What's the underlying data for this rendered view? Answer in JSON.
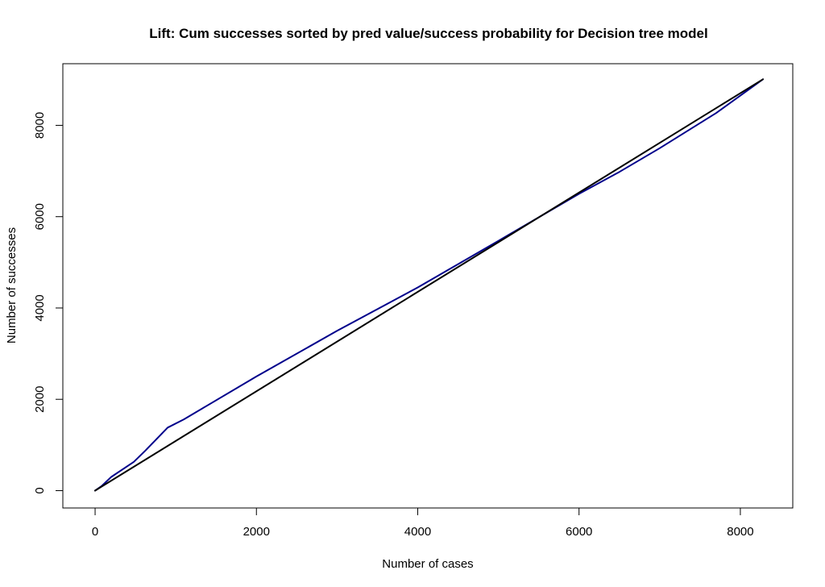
{
  "chart_data": {
    "type": "line",
    "title": "Lift: Cum successes sorted by pred value/success probability for Decision tree model",
    "xlabel": "Number of cases",
    "ylabel": "Number of successes",
    "xlim": [
      -400,
      8650
    ],
    "ylim": [
      -380,
      9350
    ],
    "x_ticks": [
      0,
      2000,
      4000,
      6000,
      8000
    ],
    "y_ticks": [
      0,
      2000,
      4000,
      6000,
      8000
    ],
    "x_tick_labels": [
      "0",
      "2000",
      "4000",
      "6000",
      "8000"
    ],
    "y_tick_labels": [
      "0",
      "2000",
      "4000",
      "6000",
      "8000"
    ],
    "grid": false,
    "series": [
      {
        "color": "#00008b",
        "x": [
          0,
          80,
          200,
          480,
          620,
          900,
          1100,
          2000,
          3000,
          4000,
          5000,
          6000,
          6500,
          7000,
          7700,
          8280
        ],
        "y": [
          0,
          100,
          300,
          630,
          870,
          1380,
          1560,
          2500,
          3500,
          4450,
          5470,
          6500,
          6980,
          7500,
          8270,
          9010
        ]
      },
      {
        "color": "#000000",
        "x": [
          0,
          8280
        ],
        "y": [
          0,
          9010
        ]
      }
    ]
  }
}
